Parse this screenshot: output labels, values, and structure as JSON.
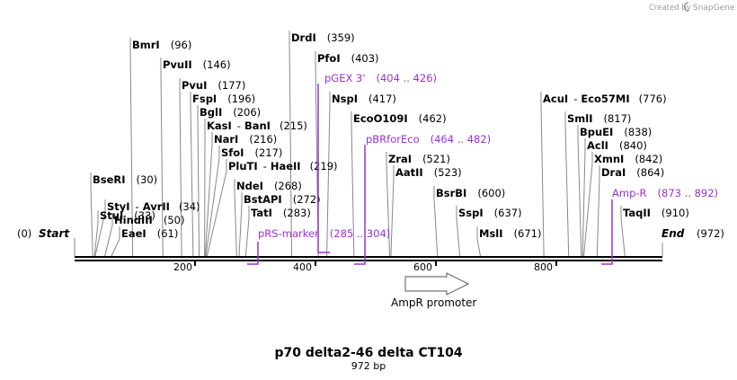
{
  "credit": {
    "prefix": "Created by",
    "brand": "SnapGene"
  },
  "map": {
    "title": "p70 delta2-46 delta CT104",
    "subtitle": "972 bp",
    "start_label": "Start",
    "start_pos": "(0)",
    "end_label": "End",
    "end_pos": "(972)",
    "length_bp": 972,
    "ticks": [
      "200",
      "400",
      "600",
      "800"
    ],
    "promoter": {
      "name": "AmpR promoter"
    }
  },
  "enzymes": [
    {
      "name": "BseRI",
      "pos": "(30)"
    },
    {
      "name": "StuI",
      "pos": "(33)"
    },
    {
      "name": "StyI",
      "name2": "AvrII",
      "pos": "(34)"
    },
    {
      "name": "HindIII",
      "pos": "(50)"
    },
    {
      "name": "EaeI",
      "pos": "(61)"
    },
    {
      "name": "BmrI",
      "pos": "(96)"
    },
    {
      "name": "PvuII",
      "pos": "(146)"
    },
    {
      "name": "PvuI",
      "pos": "(177)"
    },
    {
      "name": "FspI",
      "pos": "(196)"
    },
    {
      "name": "BglI",
      "pos": "(206)"
    },
    {
      "name": "KasI",
      "name2": "BanI",
      "pos": "(215)"
    },
    {
      "name": "NarI",
      "pos": "(216)"
    },
    {
      "name": "SfoI",
      "pos": "(217)"
    },
    {
      "name": "PluTI",
      "name2": "HaeII",
      "pos": "(219)"
    },
    {
      "name": "NdeI",
      "pos": "(268)"
    },
    {
      "name": "BstAPI",
      "pos": "(272)"
    },
    {
      "name": "TatI",
      "pos": "(283)"
    },
    {
      "name": "DrdI",
      "pos": "(359)"
    },
    {
      "name": "PfoI",
      "pos": "(403)"
    },
    {
      "name": "NspI",
      "pos": "(417)"
    },
    {
      "name": "EcoO109I",
      "pos": "(462)"
    },
    {
      "name": "ZraI",
      "pos": "(521)"
    },
    {
      "name": "AatII",
      "pos": "(523)"
    },
    {
      "name": "BsrBI",
      "pos": "(600)"
    },
    {
      "name": "SspI",
      "pos": "(637)"
    },
    {
      "name": "MslI",
      "pos": "(671)"
    },
    {
      "name": "AcuI",
      "name2": "Eco57MI",
      "pos": "(776)"
    },
    {
      "name": "SmlI",
      "pos": "(817)"
    },
    {
      "name": "BpuEI",
      "pos": "(838)"
    },
    {
      "name": "AclI",
      "pos": "(840)"
    },
    {
      "name": "XmnI",
      "pos": "(842)"
    },
    {
      "name": "DraI",
      "pos": "(864)"
    },
    {
      "name": "TaqII",
      "pos": "(910)"
    }
  ],
  "features": [
    {
      "name": "pRS-marker",
      "range": "(285 .. 304)"
    },
    {
      "name": "pGEX 3'",
      "range": "(404 .. 426)"
    },
    {
      "name": "pBRforEco",
      "range": "(464 .. 482)"
    },
    {
      "name": "Amp-R",
      "range": "(873 .. 892)"
    }
  ],
  "colors": {
    "feature": "#9933cc",
    "line": "#888888",
    "backbone": "#000000"
  }
}
